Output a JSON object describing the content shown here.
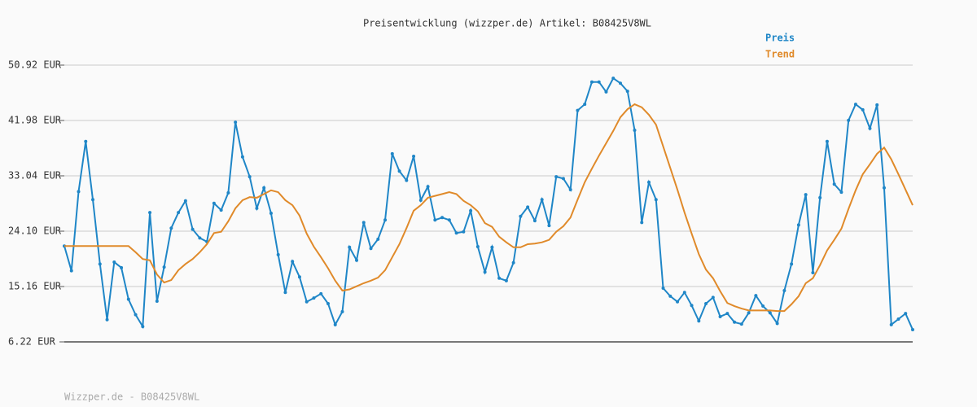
{
  "chart_data": {
    "type": "line",
    "title": "Preisentwicklung (wizzper.de) Artikel: B08425V8WL",
    "footer": "Wizzper.de - B08425V8WL",
    "ylim": [
      6.22,
      50.92
    ],
    "yticks": [
      {
        "value": 6.22,
        "label": "6.22 EUR"
      },
      {
        "value": 15.16,
        "label": "15.16 EUR"
      },
      {
        "value": 24.1,
        "label": "24.10 EUR"
      },
      {
        "value": 33.04,
        "label": "33.04 EUR"
      },
      {
        "value": 41.98,
        "label": "41.98 EUR"
      },
      {
        "value": 50.92,
        "label": "50.92 EUR"
      }
    ],
    "grid": true,
    "legend": "top-right",
    "series": [
      {
        "name": "Preis",
        "color": "#1f86c7",
        "markers": true,
        "values": [
          21.7,
          17.7,
          30.5,
          38.6,
          29.2,
          18.8,
          9.8,
          19.1,
          18.2,
          13.1,
          10.6,
          8.7,
          27.1,
          12.8,
          18.3,
          24.6,
          27.1,
          29.0,
          24.4,
          23.0,
          22.4,
          28.6,
          27.5,
          30.3,
          41.7,
          36.1,
          32.9,
          27.8,
          31.1,
          27.0,
          20.3,
          14.2,
          19.2,
          16.7,
          12.7,
          13.3,
          14.0,
          12.4,
          9.0,
          11.1,
          21.5,
          19.4,
          25.5,
          21.3,
          22.8,
          25.9,
          36.6,
          33.8,
          32.3,
          36.2,
          29.1,
          31.3,
          25.9,
          26.3,
          25.9,
          23.8,
          24.0,
          27.4,
          21.6,
          17.5,
          21.5,
          16.5,
          16.1,
          19.0,
          26.5,
          28.0,
          25.8,
          29.2,
          25.0,
          32.9,
          32.6,
          30.8,
          43.6,
          44.6,
          48.2,
          48.2,
          46.6,
          48.8,
          48.0,
          46.7,
          40.4,
          25.5,
          32.0,
          29.2,
          14.9,
          13.6,
          12.7,
          14.2,
          12.1,
          9.6,
          12.4,
          13.4,
          10.3,
          10.8,
          9.4,
          9.1,
          10.9,
          13.7,
          12.0,
          10.9,
          9.2,
          14.5,
          18.8,
          25.1,
          30.0,
          17.4,
          29.5,
          38.6,
          31.7,
          30.4,
          42.0,
          44.6,
          43.7,
          40.7,
          44.5,
          31.1,
          9.0,
          9.9,
          10.8,
          8.2
        ]
      },
      {
        "name": "Trend",
        "color": "#e08a2a",
        "markers": false,
        "values": [
          21.7,
          21.7,
          21.7,
          21.7,
          21.7,
          21.7,
          21.7,
          21.7,
          21.7,
          21.7,
          20.7,
          19.6,
          19.4,
          17.1,
          15.8,
          16.2,
          17.8,
          18.8,
          19.6,
          20.7,
          22.0,
          23.8,
          24.0,
          25.7,
          27.8,
          29.1,
          29.6,
          29.5,
          30.1,
          30.7,
          30.4,
          29.1,
          28.3,
          26.6,
          23.7,
          21.6,
          19.9,
          18.1,
          16.1,
          14.5,
          14.7,
          15.2,
          15.7,
          16.1,
          16.6,
          17.8,
          19.9,
          22.0,
          24.6,
          27.4,
          28.3,
          29.5,
          29.8,
          30.1,
          30.4,
          30.1,
          29.0,
          28.3,
          27.3,
          25.4,
          24.8,
          23.2,
          22.3,
          21.5,
          21.5,
          22.0,
          22.1,
          22.3,
          22.7,
          24.0,
          24.9,
          26.3,
          29.2,
          32.0,
          34.2,
          36.3,
          38.3,
          40.3,
          42.5,
          43.8,
          44.6,
          44.1,
          42.9,
          41.3,
          37.8,
          34.3,
          30.8,
          27.1,
          23.7,
          20.4,
          17.9,
          16.5,
          14.4,
          12.5,
          12.0,
          11.6,
          11.3,
          11.3,
          11.3,
          11.3,
          11.2,
          11.2,
          12.3,
          13.6,
          15.7,
          16.5,
          18.6,
          21.0,
          22.7,
          24.5,
          27.7,
          30.7,
          33.3,
          34.9,
          36.6,
          37.6,
          35.7,
          33.3,
          30.8,
          28.3
        ]
      }
    ]
  }
}
